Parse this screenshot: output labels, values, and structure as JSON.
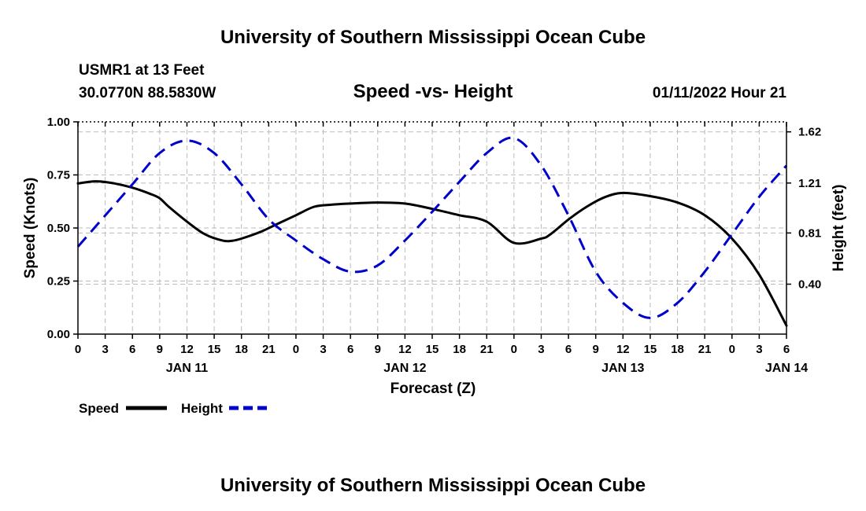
{
  "header": {
    "title": "University of Southern Mississippi Ocean Cube",
    "station": "USMR1 at 13 Feet",
    "coords": "30.0770N  88.5830W",
    "subtitle": "Speed -vs- Height",
    "datetime": "01/11/2022 Hour 21"
  },
  "footer": {
    "title": "University of Southern Mississippi Ocean Cube"
  },
  "chart_data": {
    "type": "line",
    "xlabel": "Forecast (Z)",
    "ylabel_left": "Speed (Knots)",
    "ylabel_right": "Height (feet)",
    "x_range_hours": [
      0,
      78
    ],
    "x_tick_hours": [
      0,
      3,
      6,
      9,
      12,
      15,
      18,
      21,
      24,
      27,
      30,
      33,
      36,
      39,
      42,
      45,
      48,
      51,
      54,
      57,
      60,
      63,
      66,
      69,
      72,
      75,
      78
    ],
    "x_tick_labels": [
      "0",
      "3",
      "6",
      "9",
      "12",
      "15",
      "18",
      "21",
      "0",
      "3",
      "6",
      "9",
      "12",
      "15",
      "18",
      "21",
      "0",
      "3",
      "6",
      "9",
      "12",
      "15",
      "18",
      "21",
      "0",
      "3",
      "6"
    ],
    "date_labels": [
      {
        "hour": 12,
        "label": "JAN 11"
      },
      {
        "hour": 36,
        "label": "JAN 12"
      },
      {
        "hour": 60,
        "label": "JAN 13"
      },
      {
        "hour": 78,
        "label": "JAN 14"
      }
    ],
    "y_left": {
      "range": [
        0,
        1
      ],
      "ticks": [
        0,
        0.25,
        0.5,
        0.75,
        1.0
      ],
      "tick_labels": [
        "0.00",
        "0.25",
        "0.50",
        "0.75",
        "1.00"
      ]
    },
    "y_right": {
      "range": [
        0,
        1.7
      ],
      "ticks": [
        0.4,
        0.81,
        1.21,
        1.62
      ],
      "tick_labels": [
        "0.40",
        "0.81",
        "1.21",
        "1.62"
      ]
    },
    "grid": true,
    "series": [
      {
        "name": "Speed",
        "axis": "left",
        "color": "#000000",
        "dash": "solid",
        "x": [
          0,
          2,
          4,
          6,
          8,
          9,
          10,
          12,
          14,
          16,
          17,
          18,
          20,
          22,
          24,
          26,
          28,
          30,
          33,
          36,
          39,
          42,
          45,
          48,
          51,
          52,
          54,
          56,
          58,
          60,
          63,
          66,
          69,
          72,
          75,
          78
        ],
        "y": [
          0.71,
          0.72,
          0.71,
          0.69,
          0.66,
          0.64,
          0.6,
          0.53,
          0.47,
          0.44,
          0.44,
          0.45,
          0.48,
          0.52,
          0.56,
          0.6,
          0.61,
          0.615,
          0.62,
          0.615,
          0.59,
          0.56,
          0.53,
          0.43,
          0.45,
          0.47,
          0.54,
          0.6,
          0.645,
          0.665,
          0.65,
          0.62,
          0.56,
          0.45,
          0.28,
          0.04
        ]
      },
      {
        "name": "Height",
        "axis": "right",
        "color": "#0000cc",
        "dash": "dashed",
        "x": [
          0,
          3,
          6,
          9,
          12,
          15,
          18,
          21,
          24,
          27,
          30,
          33,
          36,
          39,
          42,
          45,
          48,
          51,
          54,
          57,
          60,
          63,
          66,
          69,
          72,
          75,
          78
        ],
        "y": [
          0.7,
          0.95,
          1.2,
          1.45,
          1.55,
          1.45,
          1.2,
          0.92,
          0.75,
          0.6,
          0.5,
          0.55,
          0.75,
          0.98,
          1.22,
          1.45,
          1.57,
          1.35,
          0.95,
          0.5,
          0.25,
          0.13,
          0.25,
          0.5,
          0.8,
          1.1,
          1.35
        ]
      }
    ],
    "legend": {
      "position": "bottom-left",
      "entries": [
        "Speed",
        "Height"
      ]
    }
  }
}
